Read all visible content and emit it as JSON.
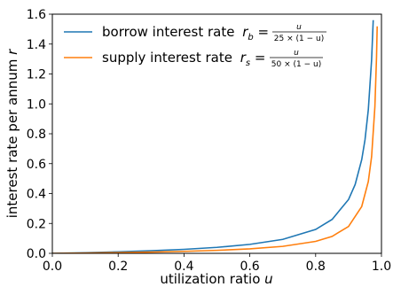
{
  "chart_data": {
    "type": "line",
    "xlabel": "utilization ratio",
    "xlabel_var": "u",
    "ylabel": "interest rate per annum",
    "ylabel_var": "r",
    "xlim": [
      0.0,
      1.0
    ],
    "ylim": [
      0.0,
      1.6
    ],
    "x_ticks": [
      "0.0",
      "0.2",
      "0.4",
      "0.6",
      "0.8",
      "1.0"
    ],
    "y_ticks": [
      "0.0",
      "0.2",
      "0.4",
      "0.6",
      "0.8",
      "1.0",
      "1.2",
      "1.4",
      "1.6"
    ],
    "legend_position": "top-left",
    "grid": false,
    "series": [
      {
        "name": "borrow interest rate",
        "symbol": "r",
        "subscript": "b",
        "numerator": "u",
        "denominator": "25 × (1 − u)",
        "color": "#1f77b4",
        "x": [
          0.0,
          0.1,
          0.2,
          0.3,
          0.4,
          0.5,
          0.6,
          0.7,
          0.8,
          0.85,
          0.9,
          0.92,
          0.94,
          0.95,
          0.96,
          0.97,
          0.975
        ],
        "y": [
          0.0,
          0.0044,
          0.01,
          0.0171,
          0.0267,
          0.04,
          0.06,
          0.0933,
          0.16,
          0.2267,
          0.36,
          0.46,
          0.6267,
          0.76,
          0.96,
          1.2933,
          1.56
        ]
      },
      {
        "name": "supply interest rate",
        "symbol": "r",
        "subscript": "s",
        "numerator": "u",
        "denominator": "50 × (1 − u)",
        "color": "#ff7f0e",
        "x": [
          0.0,
          0.1,
          0.2,
          0.3,
          0.4,
          0.5,
          0.6,
          0.7,
          0.8,
          0.85,
          0.9,
          0.94,
          0.96,
          0.97,
          0.98,
          0.985,
          0.987
        ],
        "y": [
          0.0,
          0.0022,
          0.005,
          0.0086,
          0.0133,
          0.02,
          0.03,
          0.0467,
          0.08,
          0.1133,
          0.18,
          0.3133,
          0.48,
          0.6467,
          0.98,
          1.3133,
          1.5185
        ]
      }
    ]
  }
}
